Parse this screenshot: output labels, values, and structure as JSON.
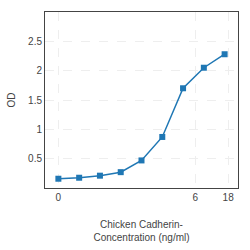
{
  "chart_data": {
    "type": "line",
    "xlabel": "Chicken Cadherin-\nConcentration (ng/ml)",
    "ylabel": "OD",
    "x": [
      0.0625,
      0.125,
      0.25,
      0.5,
      1,
      2,
      4,
      8,
      16
    ],
    "values": [
      0.158,
      0.175,
      0.21,
      0.27,
      0.47,
      0.87,
      1.7,
      2.05,
      2.28
    ],
    "marker": "square",
    "log": "x",
    "xlim": [
      0.04,
      25
    ],
    "xticks": [
      {
        "value": 0.0625,
        "label": "0"
      },
      6,
      18
    ],
    "ylim": [
      0.0,
      3.0
    ],
    "yticks": [
      0.5,
      1.0,
      1.5,
      2.0,
      2.5
    ],
    "grid": true
  }
}
